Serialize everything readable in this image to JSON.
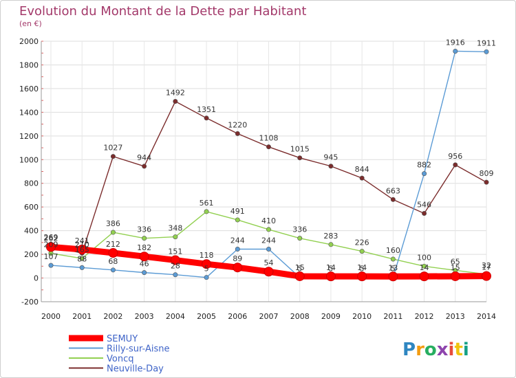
{
  "chart_data": {
    "type": "line",
    "title": "Evolution du Montant de la Dette par Habitant",
    "subtitle": "(en €)",
    "xlabel": "",
    "ylabel": "",
    "categories": [
      "2000",
      "2001",
      "2002",
      "2003",
      "2004",
      "2005",
      "2006",
      "2007",
      "2008",
      "2009",
      "2010",
      "2011",
      "2012",
      "2013",
      "2014"
    ],
    "ylim": [
      -200,
      2000
    ],
    "yticks": [
      -200,
      0,
      200,
      400,
      600,
      800,
      1000,
      1200,
      1400,
      1600,
      1800,
      2000
    ],
    "grid": true,
    "legend_position": "bottom-left",
    "series": [
      {
        "name": "SEMUY",
        "color": "#ff0000",
        "values": [
          262,
          241,
          212,
          182,
          151,
          118,
          89,
          54,
          15,
          14,
          14,
          13,
          14,
          15,
          17
        ]
      },
      {
        "name": "Rilly-sur-Aisne",
        "color": "#5b9bd5",
        "values": [
          107,
          88,
          68,
          46,
          28,
          5,
          244,
          244,
          5,
          5,
          5,
          5,
          882,
          1916,
          1911
        ]
      },
      {
        "name": "Voncq",
        "color": "#92d050",
        "values": [
          209,
          165,
          386,
          336,
          348,
          561,
          491,
          410,
          336,
          283,
          226,
          160,
          100,
          65,
          32
        ]
      },
      {
        "name": "Neuville-Day",
        "color": "#7b2c2c",
        "values": [
          269,
          210,
          1027,
          944,
          1492,
          1351,
          1220,
          1108,
          1015,
          945,
          844,
          663,
          546,
          956,
          809
        ]
      }
    ]
  },
  "logo": {
    "letters": [
      "P",
      "r",
      "o",
      "x",
      "i",
      "t",
      "i"
    ],
    "colors": [
      "#2e86c1",
      "#f39c12",
      "#27ae60",
      "#8e44ad",
      "#e74c3c",
      "#f1c40f",
      "#16a085"
    ]
  }
}
